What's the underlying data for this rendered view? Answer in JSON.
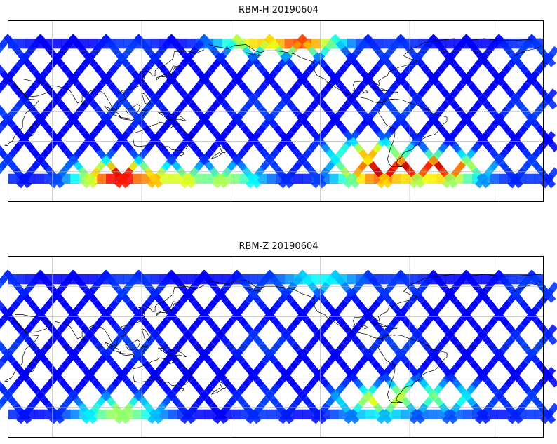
{
  "panels": [
    {
      "title": "RBM-H 20190604",
      "colormap": "jet",
      "hot_regions": [
        {
          "lon": 105,
          "lat": -65,
          "level": 0.92
        },
        {
          "lon": 120,
          "lat": -68,
          "level": 0.75
        },
        {
          "lon": 145,
          "lat": -70,
          "level": 0.62
        },
        {
          "lon": 175,
          "lat": -70,
          "level": 0.55
        },
        {
          "lon": 200,
          "lat": 70,
          "level": 0.7
        },
        {
          "lon": 225,
          "lat": 68,
          "level": 0.82
        },
        {
          "lon": 280,
          "lat": -60,
          "level": 0.96
        },
        {
          "lon": 300,
          "lat": -58,
          "level": 0.94
        },
        {
          "lon": 320,
          "lat": -58,
          "level": 0.93
        },
        {
          "lon": 275,
          "lat": -45,
          "level": 0.7
        }
      ],
      "background_level": 0.12
    },
    {
      "title": "RBM-Z 20190604",
      "colormap": "jet",
      "hot_regions": [
        {
          "lon": 105,
          "lat": -65,
          "level": 0.55
        },
        {
          "lon": 280,
          "lat": -55,
          "level": 0.62
        },
        {
          "lon": 300,
          "lat": -50,
          "level": 0.58
        },
        {
          "lon": 320,
          "lat": -52,
          "level": 0.5
        },
        {
          "lon": 240,
          "lat": 65,
          "level": 0.38
        }
      ],
      "background_level": 0.12
    }
  ],
  "map_extent": {
    "lon_min": 30,
    "lon_max": 390,
    "lat_min": -90,
    "lat_max": 90
  },
  "data_extent": {
    "lat_min": -72,
    "lat_max": 72
  },
  "gridlines": {
    "lon_step": 60,
    "lat_step": 30,
    "color": "#b0b0b0"
  }
}
